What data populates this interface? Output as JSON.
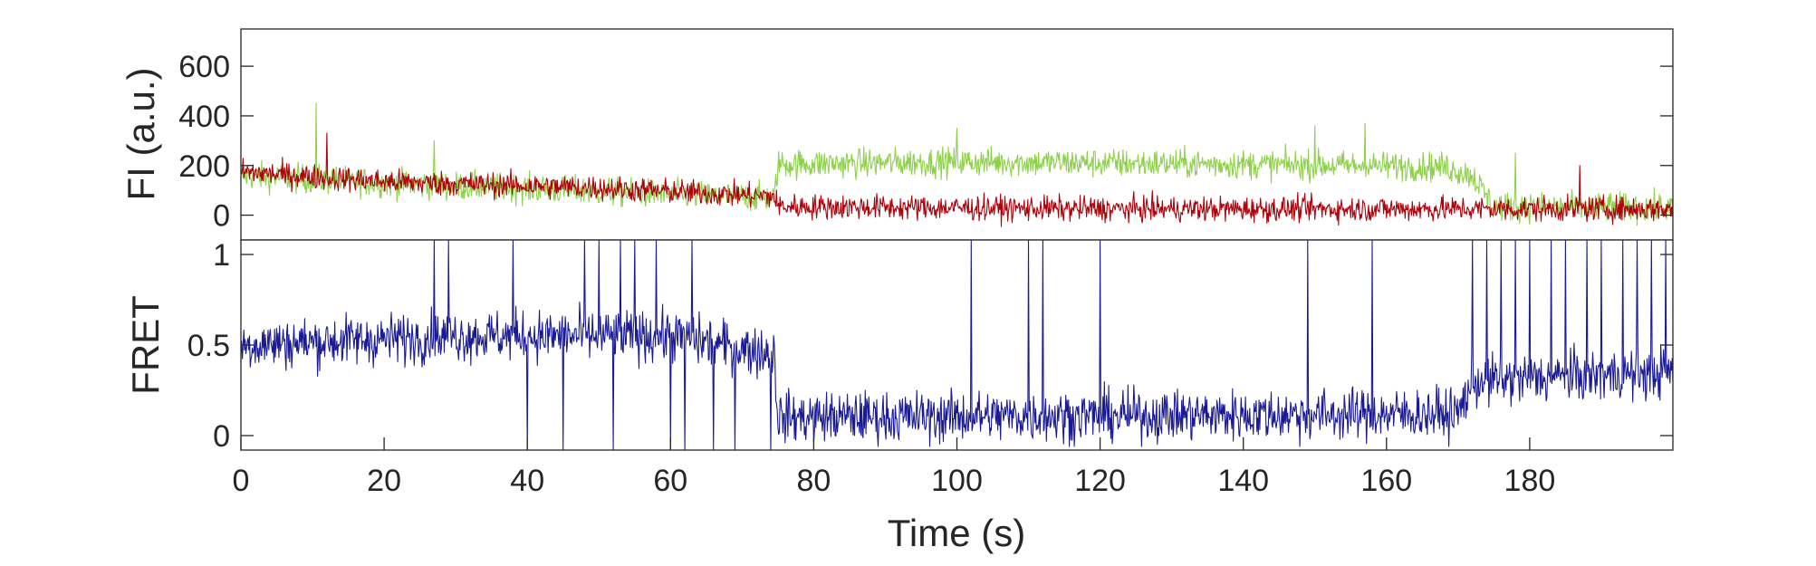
{
  "colors": {
    "donor": "#8ed14a",
    "acceptor": "#b0000a",
    "fret": "#1a1a96",
    "axis": "#262626"
  },
  "chart_data": [
    {
      "type": "line",
      "panel": "intensity",
      "ylabel": "FI (a.u.)",
      "xlabel": "",
      "xlim": [
        0,
        200
      ],
      "ylim": [
        -100,
        750
      ],
      "yticks": [
        0,
        200,
        400,
        600
      ],
      "x_step": 0.1,
      "segments_note_units": "x in seconds, y in a.u.",
      "series": [
        {
          "color": "#8ed14a",
          "baseline": [
            [
              0,
              160
            ],
            [
              20,
              130
            ],
            [
              50,
              95
            ],
            [
              74.5,
              70
            ],
            [
              75,
              205
            ],
            [
              100,
              215
            ],
            [
              140,
              205
            ],
            [
              168,
              195
            ],
            [
              172,
              160
            ],
            [
              175,
              35
            ],
            [
              200,
              30
            ]
          ],
          "noise": 58,
          "spikes": [
            [
              10.5,
              450
            ],
            [
              27,
              300
            ],
            [
              100,
              350
            ],
            [
              150,
              360
            ],
            [
              157,
              370
            ],
            [
              178,
              250
            ]
          ]
        },
        {
          "color": "#b0000a",
          "baseline": [
            [
              0,
              175
            ],
            [
              20,
              135
            ],
            [
              50,
              110
            ],
            [
              74.5,
              75
            ],
            [
              75,
              35
            ],
            [
              120,
              25
            ],
            [
              200,
              25
            ]
          ],
          "noise": 50,
          "spikes": [
            [
              12,
              330
            ],
            [
              187,
              200
            ]
          ]
        }
      ]
    },
    {
      "type": "line",
      "panel": "fret",
      "ylabel": "FRET",
      "xlabel": "Time (s)",
      "xlim": [
        0,
        200
      ],
      "ylim": [
        -0.08,
        1.08
      ],
      "yticks": [
        0,
        0.5,
        1
      ],
      "xticks": [
        0,
        20,
        40,
        60,
        80,
        100,
        120,
        140,
        160,
        180
      ],
      "x_step": 0.1,
      "series": [
        {
          "color": "#1a1a96",
          "baseline": [
            [
              0,
              0.5
            ],
            [
              30,
              0.55
            ],
            [
              60,
              0.55
            ],
            [
              74.5,
              0.45
            ],
            [
              75,
              0.1
            ],
            [
              170,
              0.12
            ],
            [
              172,
              0.3
            ],
            [
              200,
              0.35
            ]
          ],
          "noise": 0.14,
          "spikes_up": [
            27,
            29,
            38,
            48,
            50,
            53,
            55,
            58,
            63,
            102,
            110,
            112,
            120,
            149,
            158,
            172,
            174,
            176,
            178,
            180,
            183,
            185,
            188,
            190,
            193,
            195,
            197,
            199
          ],
          "spikes_down": [
            40,
            45,
            52,
            60,
            62,
            66,
            69,
            74
          ]
        }
      ]
    }
  ]
}
